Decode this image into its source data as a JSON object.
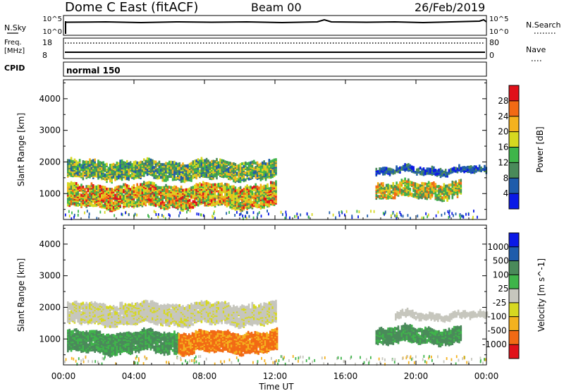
{
  "header": {
    "station": "Dome C East (fitACF)",
    "beam": "Beam 00",
    "date": "26/Feb/2019"
  },
  "noise_panel": {
    "left_label": "N.Sky",
    "right_label": "N.Search",
    "ticks_left": [
      "10^5",
      "10^0"
    ],
    "ticks_right": [
      "10^5",
      "10^0"
    ]
  },
  "freq_panel": {
    "left_label_1": "Freq.",
    "left_label_2": "[MHz]",
    "right_label": "Nave",
    "ticks_left": [
      "18",
      "8"
    ],
    "ticks_right": [
      "80",
      "0"
    ]
  },
  "cpid_panel": {
    "label": "CPID",
    "value": "normal 150"
  },
  "x_axis": {
    "label": "Time UT",
    "ticks": [
      "00:00",
      "04:00",
      "08:00",
      "12:00",
      "16:00",
      "20:00",
      "00:00"
    ]
  },
  "colors": {
    "power": [
      "#0a19e6",
      "#1f5cab",
      "#4a8a5a",
      "#3fb54a",
      "#d6d820",
      "#f4b21e",
      "#f26a14",
      "#e0111a"
    ],
    "velocity": [
      "#e0111a",
      "#f26a14",
      "#f4b21e",
      "#d6d820",
      "#c6c6bd",
      "#3fb54a",
      "#4a8a5a",
      "#1f5cab",
      "#0a19e6"
    ]
  },
  "chart_data": [
    {
      "type": "heatmap",
      "title": "",
      "xlabel": "Time UT",
      "ylabel": "Slant Range [km]",
      "x_ticks": [
        "00:00",
        "04:00",
        "08:00",
        "12:00",
        "16:00",
        "20:00",
        "00:00"
      ],
      "xlim_hours": [
        0,
        24
      ],
      "y_ticks": [
        "1000",
        "2000",
        "3000",
        "4000"
      ],
      "ylim": [
        180,
        4600
      ],
      "colorbar": {
        "label": "Power [dB]",
        "ticks": [
          "4",
          "8",
          "12",
          "16",
          "20",
          "24",
          "28"
        ],
        "range": [
          0,
          32
        ]
      },
      "echo_regions": [
        {
          "t_start": 0.2,
          "t_end": 12.1,
          "range_low": 1450,
          "range_high": 2100,
          "level": "medium"
        },
        {
          "t_start": 0.2,
          "t_end": 12.1,
          "range_low": 500,
          "range_high": 1350,
          "level": "high"
        },
        {
          "t_start": 17.7,
          "t_end": 24.0,
          "range_low": 1600,
          "range_high": 1900,
          "level": "low"
        },
        {
          "t_start": 17.7,
          "t_end": 22.5,
          "range_low": 800,
          "range_high": 1400,
          "level": "medium"
        }
      ]
    },
    {
      "type": "heatmap",
      "title": "",
      "xlabel": "Time UT",
      "ylabel": "Slant Range [km]",
      "x_ticks": [
        "00:00",
        "04:00",
        "08:00",
        "12:00",
        "16:00",
        "20:00",
        "00:00"
      ],
      "xlim_hours": [
        0,
        24
      ],
      "y_ticks": [
        "1000",
        "2000",
        "3000",
        "4000"
      ],
      "ylim": [
        180,
        4600
      ],
      "colorbar": {
        "label": "Velocity [m s^-1]",
        "ticks": [
          "1000",
          "500",
          "100",
          "25",
          "-25",
          "-100",
          "-500",
          "-1000"
        ]
      },
      "echo_regions": [
        {
          "t_start": 0.2,
          "t_end": 12.1,
          "range_low": 1450,
          "range_high": 2200,
          "velocity": "near zero"
        },
        {
          "t_start": 0.2,
          "t_end": 6.5,
          "range_low": 500,
          "range_high": 1300,
          "velocity": "positive"
        },
        {
          "t_start": 6.5,
          "t_end": 12.1,
          "range_low": 500,
          "range_high": 1300,
          "velocity": "negative"
        },
        {
          "t_start": 18.8,
          "t_end": 24.0,
          "range_low": 1600,
          "range_high": 1900,
          "velocity": "near zero"
        },
        {
          "t_start": 17.7,
          "t_end": 22.5,
          "range_low": 800,
          "range_high": 1400,
          "velocity": "positive"
        }
      ]
    }
  ]
}
